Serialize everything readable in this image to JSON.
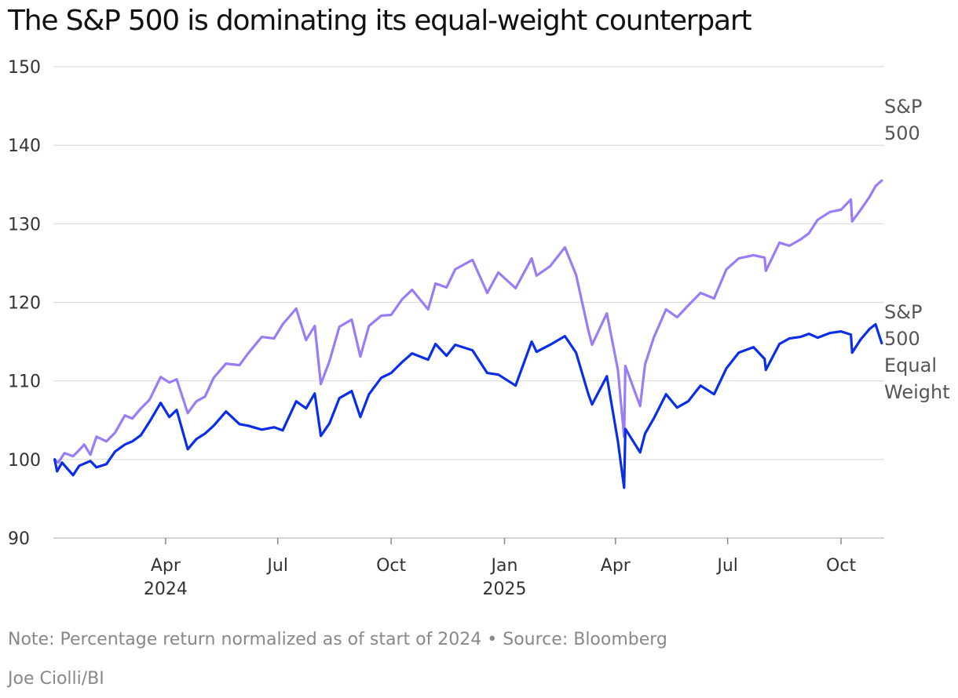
{
  "chart_data": {
    "type": "line",
    "title": "The S&P 500 is dominating its equal-weight counterpart",
    "ylim": [
      90,
      150
    ],
    "y_ticks": [
      90,
      100,
      110,
      120,
      130,
      140,
      150
    ],
    "x_ticks": [
      {
        "date": "2024-04-01",
        "label": "Apr",
        "year": "2024"
      },
      {
        "date": "2024-07-01",
        "label": "Jul",
        "year": ""
      },
      {
        "date": "2024-10-01",
        "label": "Oct",
        "year": ""
      },
      {
        "date": "2025-01-01",
        "label": "Jan",
        "year": "2025"
      },
      {
        "date": "2025-04-01",
        "label": "Apr",
        "year": ""
      },
      {
        "date": "2025-07-01",
        "label": "Jul",
        "year": ""
      },
      {
        "date": "2025-10-01",
        "label": "Oct",
        "year": ""
      }
    ],
    "xlim": [
      "2024-01-01",
      "2025-11-05"
    ],
    "grid": true,
    "colors": {
      "sp500": "#9a7cf7",
      "equal_weight": "#0a2ee8"
    },
    "series": [
      {
        "name": "S&P 500",
        "label_lines": [
          "S&P",
          "500"
        ],
        "points": [
          [
            "2024-01-02",
            100.0
          ],
          [
            "2024-01-05",
            99.6
          ],
          [
            "2024-01-10",
            100.8
          ],
          [
            "2024-01-17",
            100.4
          ],
          [
            "2024-01-22",
            101.2
          ],
          [
            "2024-01-26",
            101.9
          ],
          [
            "2024-01-31",
            100.6
          ],
          [
            "2024-02-05",
            102.9
          ],
          [
            "2024-02-13",
            102.3
          ],
          [
            "2024-02-20",
            103.4
          ],
          [
            "2024-02-28",
            105.6
          ],
          [
            "2024-03-05",
            105.2
          ],
          [
            "2024-03-12",
            106.5
          ],
          [
            "2024-03-19",
            107.6
          ],
          [
            "2024-03-28",
            110.5
          ],
          [
            "2024-04-04",
            109.8
          ],
          [
            "2024-04-10",
            110.2
          ],
          [
            "2024-04-19",
            105.9
          ],
          [
            "2024-04-26",
            107.4
          ],
          [
            "2024-05-03",
            108.0
          ],
          [
            "2024-05-10",
            110.4
          ],
          [
            "2024-05-20",
            112.2
          ],
          [
            "2024-05-31",
            112.0
          ],
          [
            "2024-06-07",
            113.5
          ],
          [
            "2024-06-18",
            115.6
          ],
          [
            "2024-06-28",
            115.4
          ],
          [
            "2024-07-05",
            117.2
          ],
          [
            "2024-07-16",
            119.2
          ],
          [
            "2024-07-24",
            115.2
          ],
          [
            "2024-07-31",
            117.0
          ],
          [
            "2024-08-05",
            109.6
          ],
          [
            "2024-08-12",
            112.5
          ],
          [
            "2024-08-20",
            116.9
          ],
          [
            "2024-08-30",
            117.8
          ],
          [
            "2024-09-06",
            113.1
          ],
          [
            "2024-09-13",
            117.0
          ],
          [
            "2024-09-23",
            118.3
          ],
          [
            "2024-10-01",
            118.4
          ],
          [
            "2024-10-10",
            120.4
          ],
          [
            "2024-10-18",
            121.6
          ],
          [
            "2024-10-31",
            119.1
          ],
          [
            "2024-11-06",
            122.4
          ],
          [
            "2024-11-15",
            121.9
          ],
          [
            "2024-11-22",
            124.2
          ],
          [
            "2024-12-06",
            125.4
          ],
          [
            "2024-12-18",
            121.2
          ],
          [
            "2024-12-27",
            123.8
          ],
          [
            "2025-01-10",
            121.8
          ],
          [
            "2025-01-23",
            125.6
          ],
          [
            "2025-01-27",
            123.4
          ],
          [
            "2025-02-07",
            124.6
          ],
          [
            "2025-02-19",
            127.0
          ],
          [
            "2025-02-28",
            123.5
          ],
          [
            "2025-03-10",
            116.4
          ],
          [
            "2025-03-13",
            114.6
          ],
          [
            "2025-03-25",
            118.6
          ],
          [
            "2025-04-03",
            111.4
          ],
          [
            "2025-04-08",
            102.9
          ],
          [
            "2025-04-09",
            111.9
          ],
          [
            "2025-04-21",
            106.8
          ],
          [
            "2025-04-25",
            112.1
          ],
          [
            "2025-05-02",
            115.5
          ],
          [
            "2025-05-12",
            119.1
          ],
          [
            "2025-05-21",
            118.1
          ],
          [
            "2025-05-30",
            119.6
          ],
          [
            "2025-06-09",
            121.2
          ],
          [
            "2025-06-20",
            120.5
          ],
          [
            "2025-06-30",
            124.2
          ],
          [
            "2025-07-10",
            125.6
          ],
          [
            "2025-07-22",
            126.0
          ],
          [
            "2025-07-31",
            125.7
          ],
          [
            "2025-08-01",
            124.0
          ],
          [
            "2025-08-12",
            127.6
          ],
          [
            "2025-08-20",
            127.2
          ],
          [
            "2025-08-29",
            128.0
          ],
          [
            "2025-09-05",
            128.8
          ],
          [
            "2025-09-12",
            130.5
          ],
          [
            "2025-09-22",
            131.5
          ],
          [
            "2025-10-01",
            131.8
          ],
          [
            "2025-10-09",
            133.1
          ],
          [
            "2025-10-10",
            130.3
          ],
          [
            "2025-10-17",
            131.8
          ],
          [
            "2025-10-24",
            133.4
          ],
          [
            "2025-10-29",
            134.8
          ],
          [
            "2025-11-03",
            135.5
          ]
        ]
      },
      {
        "name": "S&P 500 Equal Weight",
        "label_lines": [
          "S&P",
          "500",
          "Equal",
          "Weight"
        ],
        "points": [
          [
            "2024-01-02",
            100.0
          ],
          [
            "2024-01-04",
            98.5
          ],
          [
            "2024-01-08",
            99.6
          ],
          [
            "2024-01-17",
            98.0
          ],
          [
            "2024-01-22",
            99.2
          ],
          [
            "2024-01-31",
            99.8
          ],
          [
            "2024-02-05",
            99.0
          ],
          [
            "2024-02-13",
            99.4
          ],
          [
            "2024-02-20",
            101.0
          ],
          [
            "2024-02-28",
            101.9
          ],
          [
            "2024-03-05",
            102.3
          ],
          [
            "2024-03-12",
            103.1
          ],
          [
            "2024-03-19",
            104.8
          ],
          [
            "2024-03-28",
            107.2
          ],
          [
            "2024-04-04",
            105.4
          ],
          [
            "2024-04-10",
            106.3
          ],
          [
            "2024-04-19",
            101.3
          ],
          [
            "2024-04-26",
            102.6
          ],
          [
            "2024-05-03",
            103.3
          ],
          [
            "2024-05-10",
            104.3
          ],
          [
            "2024-05-20",
            106.1
          ],
          [
            "2024-05-31",
            104.5
          ],
          [
            "2024-06-07",
            104.3
          ],
          [
            "2024-06-18",
            103.8
          ],
          [
            "2024-06-28",
            104.1
          ],
          [
            "2024-07-05",
            103.7
          ],
          [
            "2024-07-16",
            107.4
          ],
          [
            "2024-07-24",
            106.5
          ],
          [
            "2024-07-31",
            108.4
          ],
          [
            "2024-08-05",
            103.0
          ],
          [
            "2024-08-12",
            104.6
          ],
          [
            "2024-08-20",
            107.8
          ],
          [
            "2024-08-30",
            108.7
          ],
          [
            "2024-09-06",
            105.4
          ],
          [
            "2024-09-13",
            108.3
          ],
          [
            "2024-09-23",
            110.4
          ],
          [
            "2024-10-01",
            111.0
          ],
          [
            "2024-10-10",
            112.4
          ],
          [
            "2024-10-18",
            113.5
          ],
          [
            "2024-10-31",
            112.7
          ],
          [
            "2024-11-06",
            114.7
          ],
          [
            "2024-11-15",
            113.2
          ],
          [
            "2024-11-22",
            114.6
          ],
          [
            "2024-12-06",
            113.9
          ],
          [
            "2024-12-18",
            111.0
          ],
          [
            "2024-12-27",
            110.8
          ],
          [
            "2025-01-10",
            109.4
          ],
          [
            "2025-01-23",
            115.0
          ],
          [
            "2025-01-27",
            113.7
          ],
          [
            "2025-02-07",
            114.6
          ],
          [
            "2025-02-19",
            115.7
          ],
          [
            "2025-02-28",
            113.6
          ],
          [
            "2025-03-10",
            108.3
          ],
          [
            "2025-03-13",
            107.0
          ],
          [
            "2025-03-25",
            110.6
          ],
          [
            "2025-04-03",
            102.3
          ],
          [
            "2025-04-08",
            96.4
          ],
          [
            "2025-04-09",
            103.9
          ],
          [
            "2025-04-21",
            100.9
          ],
          [
            "2025-04-25",
            103.3
          ],
          [
            "2025-05-02",
            105.2
          ],
          [
            "2025-05-12",
            108.3
          ],
          [
            "2025-05-21",
            106.6
          ],
          [
            "2025-05-30",
            107.4
          ],
          [
            "2025-06-09",
            109.4
          ],
          [
            "2025-06-20",
            108.3
          ],
          [
            "2025-06-30",
            111.6
          ],
          [
            "2025-07-10",
            113.6
          ],
          [
            "2025-07-22",
            114.3
          ],
          [
            "2025-07-31",
            112.8
          ],
          [
            "2025-08-01",
            111.4
          ],
          [
            "2025-08-12",
            114.7
          ],
          [
            "2025-08-20",
            115.4
          ],
          [
            "2025-08-29",
            115.6
          ],
          [
            "2025-09-05",
            116.0
          ],
          [
            "2025-09-12",
            115.5
          ],
          [
            "2025-09-22",
            116.1
          ],
          [
            "2025-10-01",
            116.3
          ],
          [
            "2025-10-09",
            115.9
          ],
          [
            "2025-10-10",
            113.6
          ],
          [
            "2025-10-17",
            115.3
          ],
          [
            "2025-10-24",
            116.6
          ],
          [
            "2025-10-29",
            117.2
          ],
          [
            "2025-11-03",
            114.8
          ]
        ]
      }
    ]
  },
  "footer": {
    "note": "Note: Percentage return normalized as of start of 2024 • Source: Bloomberg",
    "credit": "Joe Ciolli/BI"
  }
}
